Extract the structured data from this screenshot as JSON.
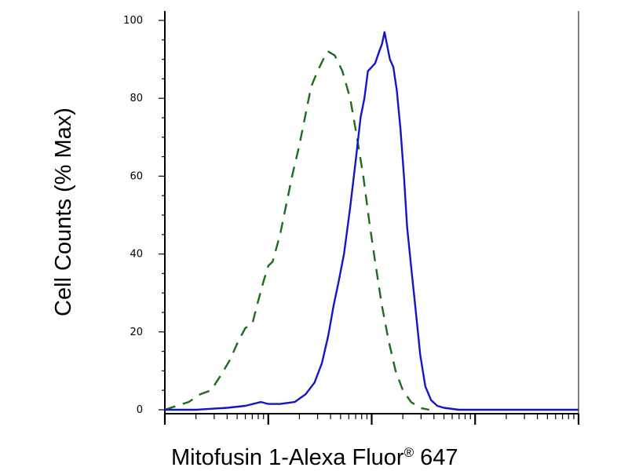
{
  "chart_data": {
    "type": "line",
    "xlabel": "Mitofusin 1-Alexa Fluor",
    "xlabel_superscript": "®",
    "xlabel_suffix": " 647",
    "ylabel": "Cell Counts (% Max)",
    "ylim": [
      0,
      100
    ],
    "xscale": "log",
    "xlim": [
      10,
      100000
    ],
    "y_ticks": [
      0,
      20,
      40,
      60,
      80,
      100
    ],
    "y_tick_labels": [
      "0",
      "20",
      "40",
      "60",
      "80",
      "100"
    ],
    "x_major_ticks": [
      10,
      100,
      1000,
      10000,
      100000
    ],
    "x_major_tick_labels": [],
    "grid": false,
    "series": [
      {
        "style": "dashed",
        "color": "#1e6b1e",
        "points": [
          [
            10,
            0
          ],
          [
            13,
            1
          ],
          [
            17,
            2
          ],
          [
            22,
            4
          ],
          [
            28,
            5
          ],
          [
            35,
            9
          ],
          [
            43,
            13
          ],
          [
            50,
            17
          ],
          [
            60,
            21
          ],
          [
            70,
            22
          ],
          [
            80,
            28
          ],
          [
            90,
            33
          ],
          [
            100,
            37
          ],
          [
            110,
            38
          ],
          [
            130,
            45
          ],
          [
            150,
            53
          ],
          [
            170,
            60
          ],
          [
            200,
            68
          ],
          [
            230,
            76
          ],
          [
            260,
            83
          ],
          [
            300,
            87
          ],
          [
            340,
            90
          ],
          [
            380,
            92
          ],
          [
            440,
            91
          ],
          [
            520,
            87
          ],
          [
            620,
            80
          ],
          [
            720,
            70
          ],
          [
            830,
            60
          ],
          [
            950,
            48
          ],
          [
            1080,
            38
          ],
          [
            1250,
            27
          ],
          [
            1450,
            18
          ],
          [
            1700,
            10
          ],
          [
            2000,
            5
          ],
          [
            2400,
            2
          ],
          [
            2900,
            0.5
          ],
          [
            3600,
            0
          ]
        ]
      },
      {
        "style": "solid",
        "color": "#1515c8",
        "points": [
          [
            10,
            0
          ],
          [
            20,
            0
          ],
          [
            40,
            0.5
          ],
          [
            60,
            1
          ],
          [
            85,
            2
          ],
          [
            100,
            1.5
          ],
          [
            130,
            1.5
          ],
          [
            180,
            2
          ],
          [
            230,
            4
          ],
          [
            280,
            7
          ],
          [
            330,
            12
          ],
          [
            380,
            19
          ],
          [
            430,
            27
          ],
          [
            480,
            33
          ],
          [
            540,
            40
          ],
          [
            620,
            52
          ],
          [
            700,
            64
          ],
          [
            780,
            75
          ],
          [
            850,
            80
          ],
          [
            920,
            87
          ],
          [
            1000,
            88
          ],
          [
            1080,
            89
          ],
          [
            1180,
            92
          ],
          [
            1260,
            94
          ],
          [
            1330,
            97
          ],
          [
            1400,
            94
          ],
          [
            1500,
            90
          ],
          [
            1620,
            88
          ],
          [
            1750,
            82
          ],
          [
            1900,
            72
          ],
          [
            2050,
            60
          ],
          [
            2200,
            47
          ],
          [
            2400,
            37
          ],
          [
            2650,
            26
          ],
          [
            2950,
            14
          ],
          [
            3300,
            6
          ],
          [
            3750,
            2.5
          ],
          [
            4300,
            1
          ],
          [
            5000,
            0.5
          ],
          [
            7000,
            0
          ],
          [
            20000,
            0
          ],
          [
            100000,
            0
          ]
        ]
      }
    ]
  }
}
